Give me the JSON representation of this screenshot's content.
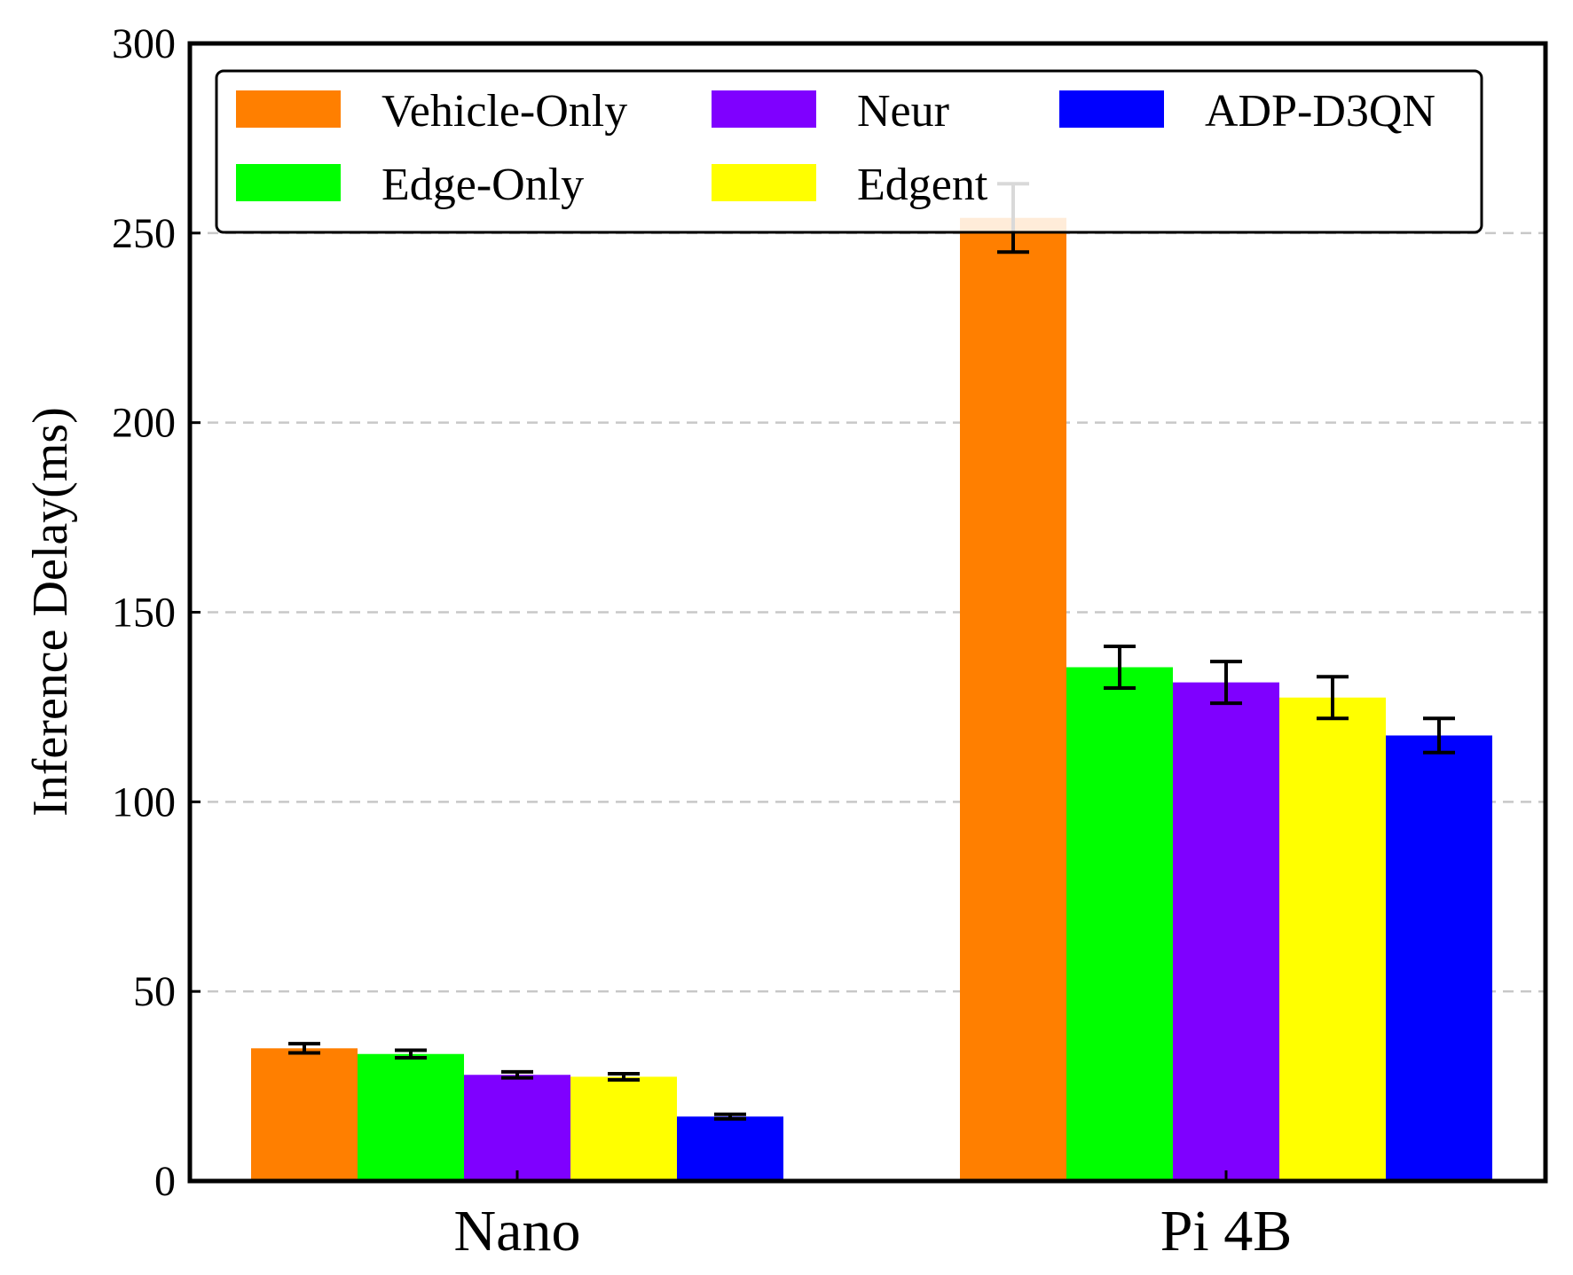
{
  "chart_data": {
    "type": "bar",
    "title": "",
    "xlabel": "",
    "ylabel": "Inference Delay(ms)",
    "ylim": [
      0,
      300
    ],
    "yticks": [
      0,
      50,
      100,
      150,
      200,
      250,
      300
    ],
    "grid": "horizontal dashed",
    "legend_position": "top",
    "categories": [
      "Nano",
      "Pi 4B"
    ],
    "series": [
      {
        "name": "Vehicle-Only",
        "color": "#ff7f00",
        "values": [
          35,
          254
        ],
        "errors": [
          1.2,
          9
        ]
      },
      {
        "name": "Edge-Only",
        "color": "#00ff00",
        "values": [
          33.5,
          135.5
        ],
        "errors": [
          1,
          5.5
        ]
      },
      {
        "name": "Neur",
        "color": "#7f00ff",
        "values": [
          28,
          131.5
        ],
        "errors": [
          0.8,
          5.5
        ]
      },
      {
        "name": "Edgent",
        "color": "#ffff00",
        "values": [
          27.5,
          127.5
        ],
        "errors": [
          0.8,
          5.5
        ]
      },
      {
        "name": "ADP-D3QN",
        "color": "#0000ff",
        "values": [
          17,
          117.5
        ],
        "errors": [
          0.6,
          4.5
        ]
      }
    ]
  }
}
